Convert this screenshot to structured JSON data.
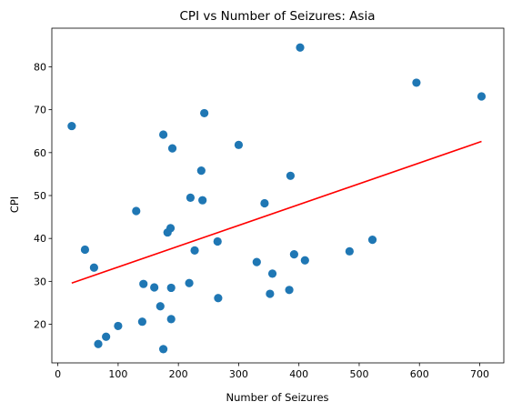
{
  "chart_data": {
    "type": "scatter",
    "title": "CPI vs Number of Seizures: Asia",
    "xlabel": "Number of Seizures",
    "ylabel": "CPI",
    "xlim": [
      -10,
      740
    ],
    "ylim": [
      11,
      89
    ],
    "xticks": [
      0,
      100,
      200,
      300,
      400,
      500,
      600,
      700
    ],
    "yticks": [
      20,
      30,
      40,
      50,
      60,
      70,
      80
    ],
    "grid": false,
    "legend": "none",
    "point_color": "#1f77b4",
    "line_color": "#ff0000",
    "points": [
      {
        "x": 23,
        "y": 66.2
      },
      {
        "x": 45,
        "y": 37.4
      },
      {
        "x": 60,
        "y": 33.2
      },
      {
        "x": 67,
        "y": 15.4
      },
      {
        "x": 80,
        "y": 17.1
      },
      {
        "x": 100,
        "y": 19.6
      },
      {
        "x": 130,
        "y": 46.4
      },
      {
        "x": 140,
        "y": 20.6
      },
      {
        "x": 142,
        "y": 29.4
      },
      {
        "x": 160,
        "y": 28.6
      },
      {
        "x": 170,
        "y": 24.2
      },
      {
        "x": 175,
        "y": 64.2
      },
      {
        "x": 175,
        "y": 14.2
      },
      {
        "x": 182,
        "y": 41.4
      },
      {
        "x": 187,
        "y": 42.4
      },
      {
        "x": 188,
        "y": 28.5
      },
      {
        "x": 188,
        "y": 21.2
      },
      {
        "x": 190,
        "y": 61.0
      },
      {
        "x": 218,
        "y": 29.6
      },
      {
        "x": 220,
        "y": 49.5
      },
      {
        "x": 227,
        "y": 37.2
      },
      {
        "x": 238,
        "y": 55.8
      },
      {
        "x": 240,
        "y": 48.9
      },
      {
        "x": 243,
        "y": 69.2
      },
      {
        "x": 265,
        "y": 39.3
      },
      {
        "x": 266,
        "y": 26.1
      },
      {
        "x": 300,
        "y": 61.8
      },
      {
        "x": 330,
        "y": 34.5
      },
      {
        "x": 343,
        "y": 48.2
      },
      {
        "x": 352,
        "y": 27.1
      },
      {
        "x": 356,
        "y": 31.8
      },
      {
        "x": 384,
        "y": 28.0
      },
      {
        "x": 386,
        "y": 54.6
      },
      {
        "x": 392,
        "y": 36.3
      },
      {
        "x": 402,
        "y": 84.5
      },
      {
        "x": 410,
        "y": 34.9
      },
      {
        "x": 484,
        "y": 37.0
      },
      {
        "x": 522,
        "y": 39.7
      },
      {
        "x": 595,
        "y": 76.3
      },
      {
        "x": 703,
        "y": 73.1
      }
    ],
    "trendline": {
      "x": [
        23,
        703
      ],
      "y": [
        29.6,
        62.6
      ]
    }
  }
}
